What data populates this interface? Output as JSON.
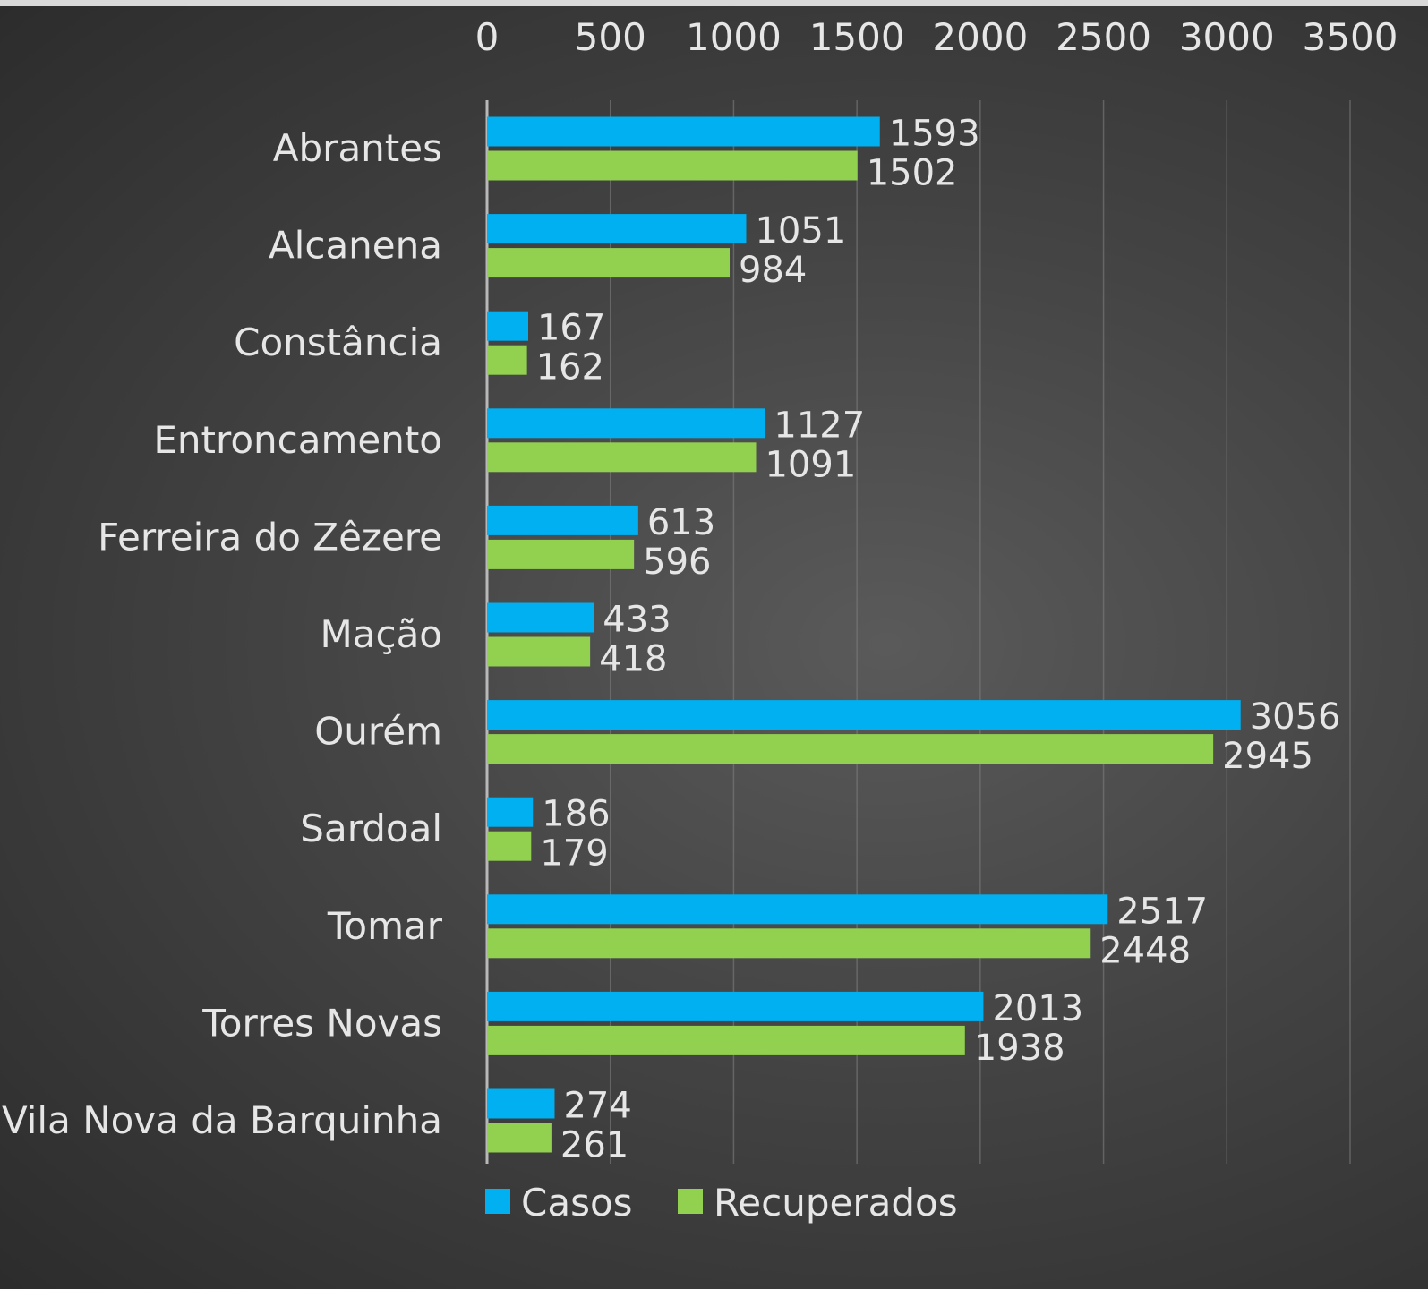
{
  "chart_data": {
    "type": "bar",
    "orientation": "horizontal",
    "categories": [
      "Abrantes",
      "Alcanena",
      "Constância",
      "Entroncamento",
      "Ferreira do Zêzere",
      "Mação",
      "Ourém",
      "Sardoal",
      "Tomar",
      "Torres Novas",
      "Vila Nova da Barquinha"
    ],
    "series": [
      {
        "name": "Casos",
        "color": "#00b0f0",
        "values": [
          1593,
          1051,
          167,
          1127,
          613,
          433,
          3056,
          186,
          2517,
          2013,
          274
        ]
      },
      {
        "name": "Recuperados",
        "color": "#92d050",
        "values": [
          1502,
          984,
          162,
          1091,
          596,
          418,
          2945,
          179,
          2448,
          1938,
          261
        ]
      }
    ],
    "x_ticks": [
      "0",
      "500",
      "1000",
      "1500",
      "2000",
      "2500",
      "3000",
      "3500"
    ],
    "xlim": [
      0,
      3500
    ],
    "x_axis_position": "top",
    "grid": true,
    "legend_position": "bottom"
  }
}
